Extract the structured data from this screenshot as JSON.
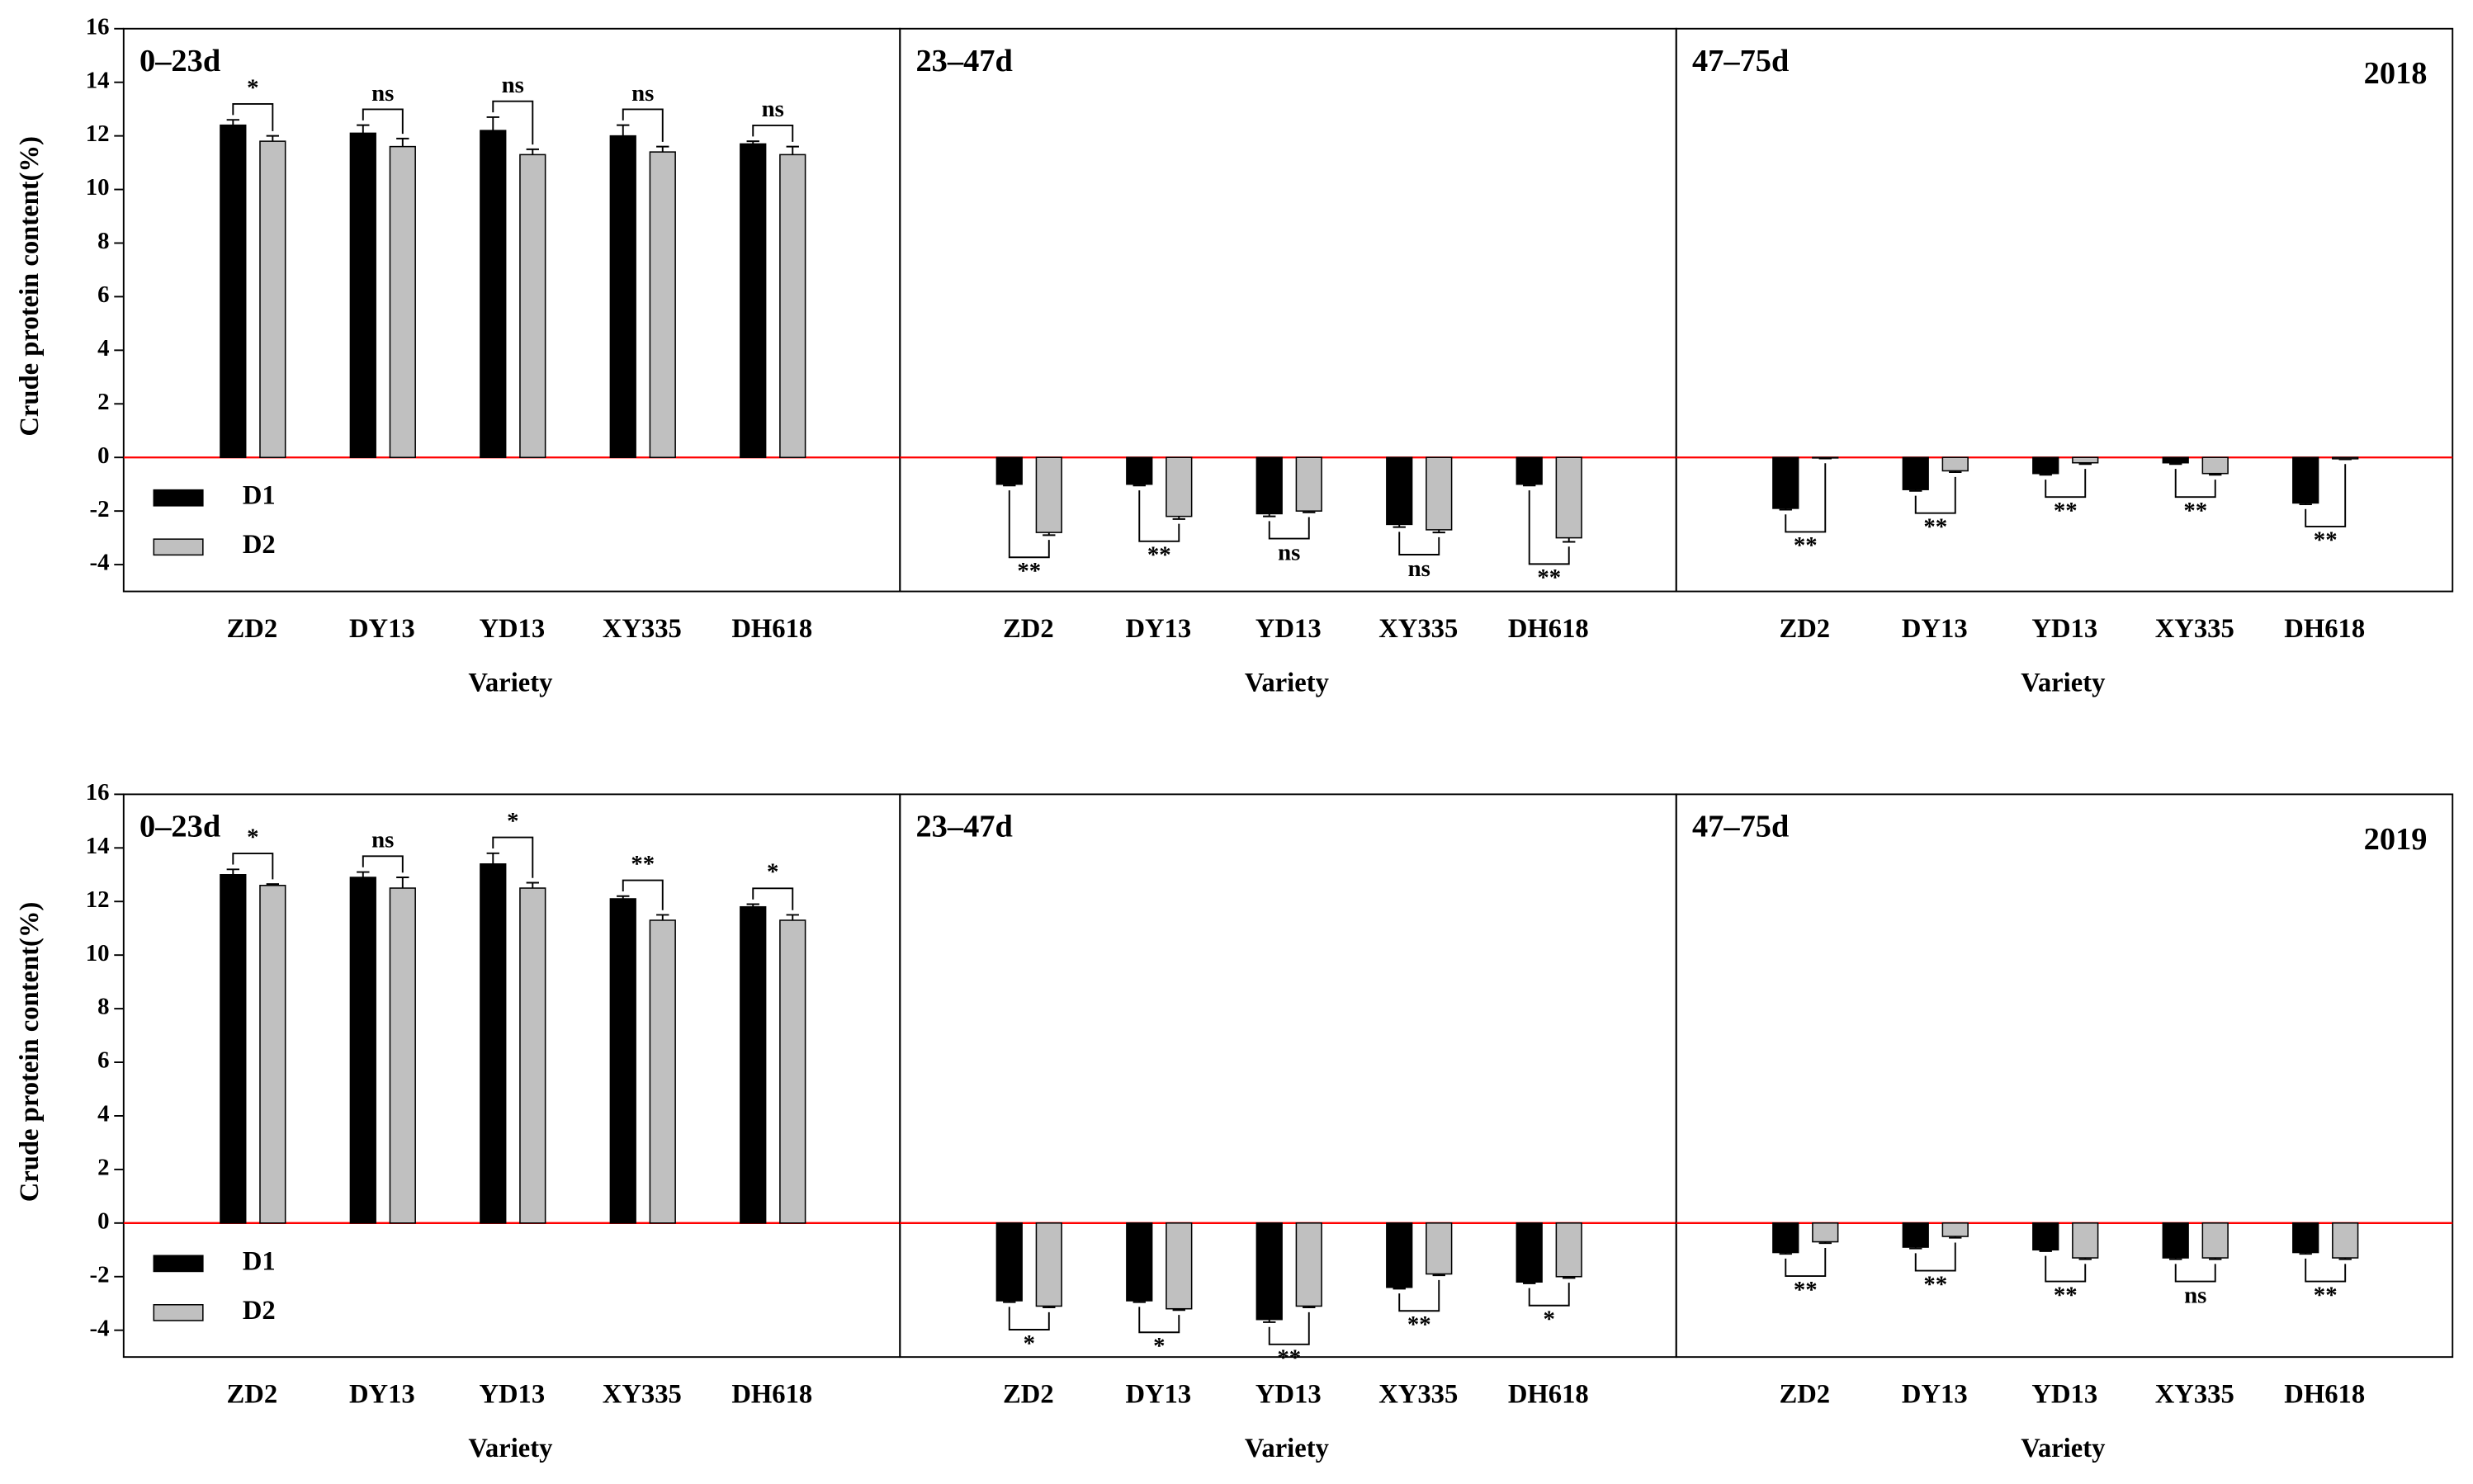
{
  "chart_data": [
    {
      "type": "bar",
      "panel_label": "0–23d",
      "y_label": "Crude protein content(%)",
      "x_label": "Variety",
      "categories": [
        "ZD2",
        "DY13",
        "YD13",
        "XY335",
        "DH618"
      ],
      "series": [
        {
          "name": "D1",
          "color": "#000000",
          "values": [
            12.4,
            12.1,
            12.2,
            12.0,
            11.7
          ],
          "errors": [
            0.2,
            0.3,
            0.5,
            0.4,
            0.1
          ]
        },
        {
          "name": "D2",
          "color": "#c0c0c0",
          "values": [
            11.8,
            11.6,
            11.3,
            11.4,
            11.3
          ],
          "errors": [
            0.2,
            0.3,
            0.2,
            0.2,
            0.3
          ]
        }
      ],
      "significance": [
        "*",
        "ns",
        "ns",
        "ns",
        "ns"
      ],
      "ylim": [
        -5,
        16
      ],
      "yticks": [
        -4,
        -2,
        0,
        2,
        4,
        6,
        8,
        10,
        12,
        14,
        16
      ],
      "legend": "lower left"
    },
    {
      "type": "bar",
      "panel_label": "23–47d",
      "x_label": "Variety",
      "categories": [
        "ZD2",
        "DY13",
        "YD13",
        "XY335",
        "DH618"
      ],
      "series": [
        {
          "color": "#000000",
          "values": [
            -1.0,
            -1.0,
            -2.1,
            -2.5,
            -1.0
          ],
          "errors": [
            0.05,
            0.05,
            0.1,
            0.1,
            0.05
          ]
        },
        {
          "color": "#c0c0c0",
          "values": [
            -2.8,
            -2.2,
            -2.0,
            -2.7,
            -3.0
          ],
          "errors": [
            0.1,
            0.1,
            0.05,
            0.1,
            0.15
          ]
        }
      ],
      "significance": [
        "**",
        "**",
        "ns",
        "ns",
        "**"
      ],
      "ylim": [
        -5,
        16
      ]
    },
    {
      "type": "bar",
      "panel_label": "47–75d",
      "x_label": "Variety",
      "annotation": "2018",
      "categories": [
        "ZD2",
        "DY13",
        "YD13",
        "XY335",
        "DH618"
      ],
      "series": [
        {
          "color": "#000000",
          "values": [
            -1.9,
            -1.2,
            -0.6,
            -0.2,
            -1.7
          ],
          "errors": [
            0.05,
            0.05,
            0.05,
            0.05,
            0.05
          ]
        },
        {
          "color": "#c0c0c0",
          "values": [
            -0.02,
            -0.5,
            -0.2,
            -0.6,
            -0.05
          ],
          "errors": [
            0.02,
            0.05,
            0.05,
            0.05,
            0.02
          ]
        }
      ],
      "significance": [
        "**",
        "**",
        "**",
        "**",
        "**"
      ],
      "ylim": [
        -5,
        16
      ]
    },
    {
      "type": "bar",
      "panel_label": "0–23d",
      "y_label": "Crude protein content(%)",
      "x_label": "Variety",
      "categories": [
        "ZD2",
        "DY13",
        "YD13",
        "XY335",
        "DH618"
      ],
      "series": [
        {
          "name": "D1",
          "color": "#000000",
          "values": [
            13.0,
            12.9,
            13.4,
            12.1,
            11.8
          ],
          "errors": [
            0.2,
            0.2,
            0.4,
            0.1,
            0.1
          ]
        },
        {
          "name": "D2",
          "color": "#c0c0c0",
          "values": [
            12.6,
            12.5,
            12.5,
            11.3,
            11.3
          ],
          "errors": [
            0.05,
            0.4,
            0.2,
            0.2,
            0.2
          ]
        }
      ],
      "significance": [
        "*",
        "ns",
        "*",
        "**",
        "*"
      ],
      "ylim": [
        -5,
        16
      ],
      "yticks": [
        -4,
        -2,
        0,
        2,
        4,
        6,
        8,
        10,
        12,
        14,
        16
      ],
      "legend": "lower left"
    },
    {
      "type": "bar",
      "panel_label": "23–47d",
      "x_label": "Variety",
      "categories": [
        "ZD2",
        "DY13",
        "YD13",
        "XY335",
        "DH618"
      ],
      "series": [
        {
          "color": "#000000",
          "values": [
            -2.9,
            -2.9,
            -3.6,
            -2.4,
            -2.2
          ],
          "errors": [
            0.05,
            0.05,
            0.1,
            0.05,
            0.05
          ]
        },
        {
          "color": "#c0c0c0",
          "values": [
            -3.1,
            -3.2,
            -3.1,
            -1.9,
            -2.0
          ],
          "errors": [
            0.05,
            0.05,
            0.05,
            0.05,
            0.05
          ]
        }
      ],
      "significance": [
        "*",
        "*",
        "**",
        "**",
        "*"
      ],
      "ylim": [
        -5,
        16
      ]
    },
    {
      "type": "bar",
      "panel_label": "47–75d",
      "x_label": "Variety",
      "annotation": "2019",
      "categories": [
        "ZD2",
        "DY13",
        "YD13",
        "XY335",
        "DH618"
      ],
      "series": [
        {
          "color": "#000000",
          "values": [
            -1.1,
            -0.9,
            -1.0,
            -1.3,
            -1.1
          ],
          "errors": [
            0.05,
            0.05,
            0.05,
            0.05,
            0.05
          ]
        },
        {
          "color": "#c0c0c0",
          "values": [
            -0.7,
            -0.5,
            -1.3,
            -1.3,
            -1.3
          ],
          "errors": [
            0.05,
            0.05,
            0.05,
            0.05,
            0.05
          ]
        }
      ],
      "significance": [
        "**",
        "**",
        "**",
        "ns",
        "**"
      ],
      "ylim": [
        -5,
        16
      ]
    }
  ]
}
